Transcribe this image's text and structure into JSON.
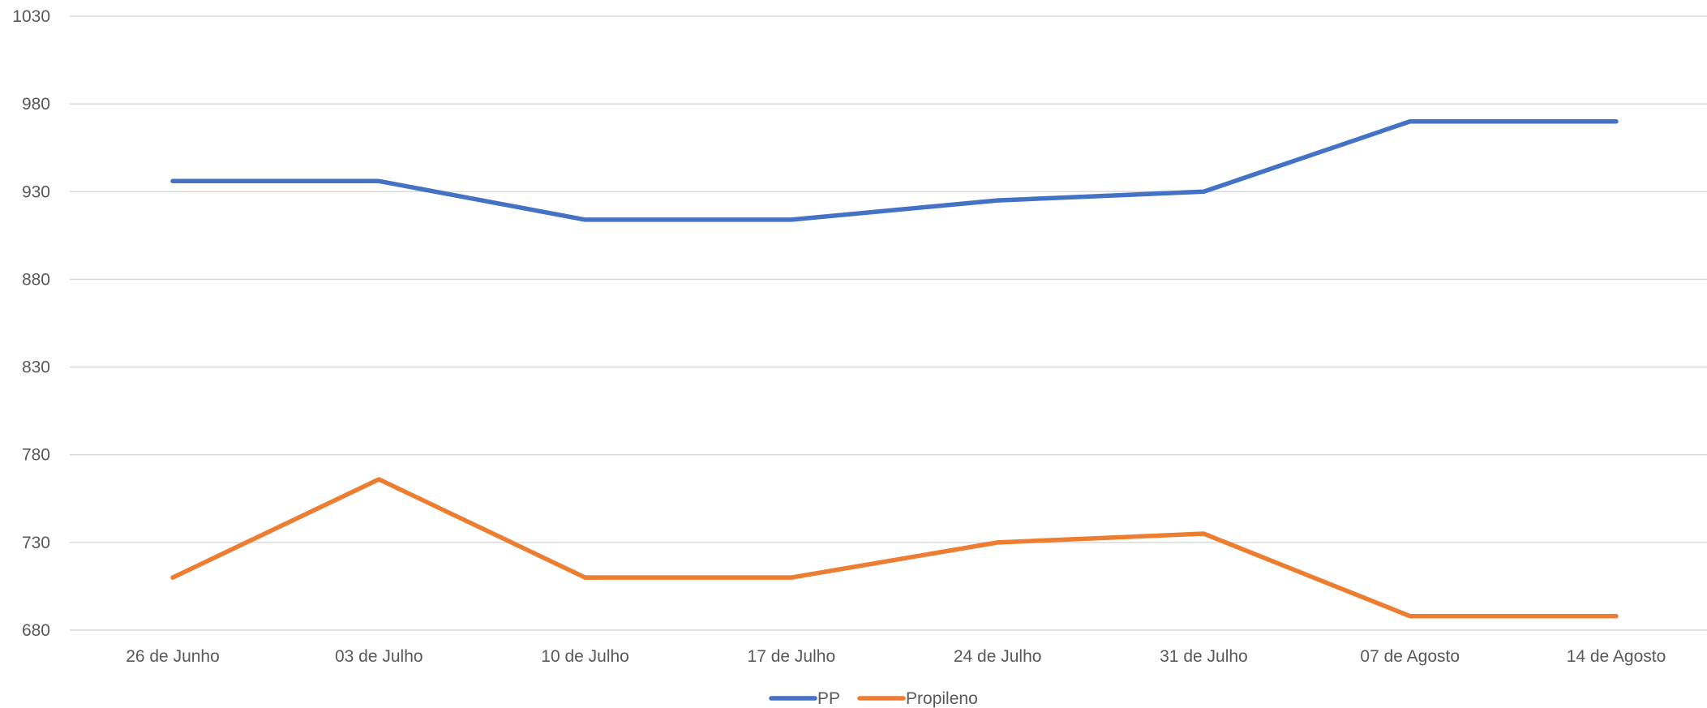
{
  "chart_data": {
    "type": "line",
    "title": "",
    "xlabel": "",
    "ylabel": "",
    "categories": [
      "26 de Junho",
      "03 de Julho",
      "10 de Julho",
      "17 de Julho",
      "24 de Julho",
      "31 de Julho",
      "07 de Agosto",
      "14 de Agosto"
    ],
    "ylim": [
      680,
      1030
    ],
    "yticks": [
      680,
      730,
      780,
      830,
      880,
      930,
      980,
      1030
    ],
    "grid": true,
    "legend_position": "bottom",
    "series": [
      {
        "name": "PP",
        "color": "#4472C4",
        "values": [
          936,
          936,
          914,
          914,
          925,
          930,
          970,
          970
        ]
      },
      {
        "name": "Propileno",
        "color": "#ED7D31",
        "values": [
          710,
          766,
          710,
          710,
          730,
          735,
          688,
          688
        ]
      }
    ]
  }
}
